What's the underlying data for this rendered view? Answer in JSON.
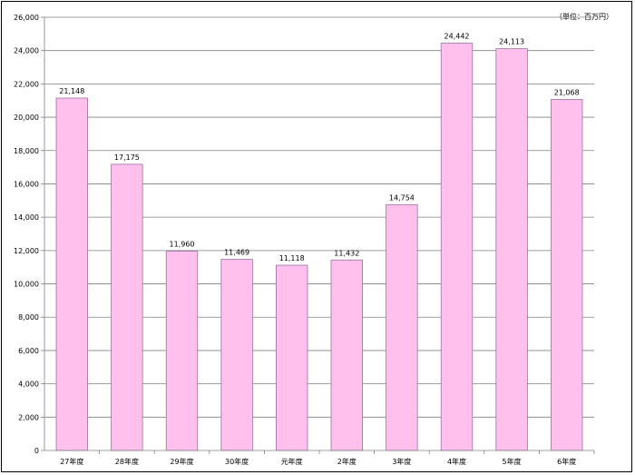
{
  "unit_label": "（単位：百万円）",
  "chart_data": {
    "type": "bar",
    "title": "",
    "xlabel": "",
    "ylabel": "",
    "unit": "（単位：百万円）",
    "categories": [
      "27年度",
      "28年度",
      "29年度",
      "30年度",
      "元年度",
      "2年度",
      "3年度",
      "4年度",
      "5年度",
      "6年度"
    ],
    "values": [
      21148,
      17175,
      11960,
      11469,
      11118,
      11432,
      14754,
      24442,
      24113,
      21068
    ],
    "data_labels": [
      "21,148",
      "17,175",
      "11,960",
      "11,469",
      "11,118",
      "11,432",
      "14,754",
      "24,442",
      "24,113",
      "21,068"
    ],
    "ylim": [
      0,
      26000
    ],
    "yticks": [
      0,
      2000,
      4000,
      6000,
      8000,
      10000,
      12000,
      14000,
      16000,
      18000,
      20000,
      22000,
      24000,
      26000
    ],
    "ytick_labels": [
      "0",
      "2,000",
      "4,000",
      "6,000",
      "8,000",
      "10,000",
      "12,000",
      "14,000",
      "16,000",
      "18,000",
      "20,000",
      "22,000",
      "24,000",
      "26,000"
    ],
    "grid": true,
    "legend": "none",
    "colors": {
      "bar_fill": "#ffc0ee",
      "bar_stroke": "#9b6fa0",
      "grid": "#808080",
      "axis": "#808080"
    }
  }
}
